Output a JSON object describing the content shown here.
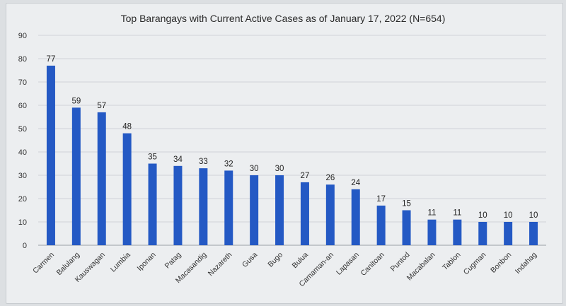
{
  "chart_data": {
    "type": "bar",
    "title": "Top Barangays with Current Active Cases as of January 17, 2022 (N=654)",
    "xlabel": "",
    "ylabel": "",
    "ylim": [
      0,
      90
    ],
    "yticks": [
      0,
      10,
      20,
      30,
      40,
      50,
      60,
      70,
      80,
      90
    ],
    "grid": true,
    "categories": [
      "Carmen",
      "Balulang",
      "Kauswagan",
      "Lumbia",
      "Iponan",
      "Patag",
      "Macasandig",
      "Nazareth",
      "Gusa",
      "Bugo",
      "Bulua",
      "Camaman-an",
      "Lapasan",
      "Canitoan",
      "Puntod",
      "Macabalan",
      "Tablon",
      "Cugman",
      "Bonbon",
      "Indahag"
    ],
    "values": [
      77,
      59,
      57,
      48,
      35,
      34,
      33,
      32,
      30,
      30,
      27,
      26,
      24,
      17,
      15,
      11,
      11,
      10,
      10,
      10
    ],
    "bar_color": "#2459c4"
  }
}
